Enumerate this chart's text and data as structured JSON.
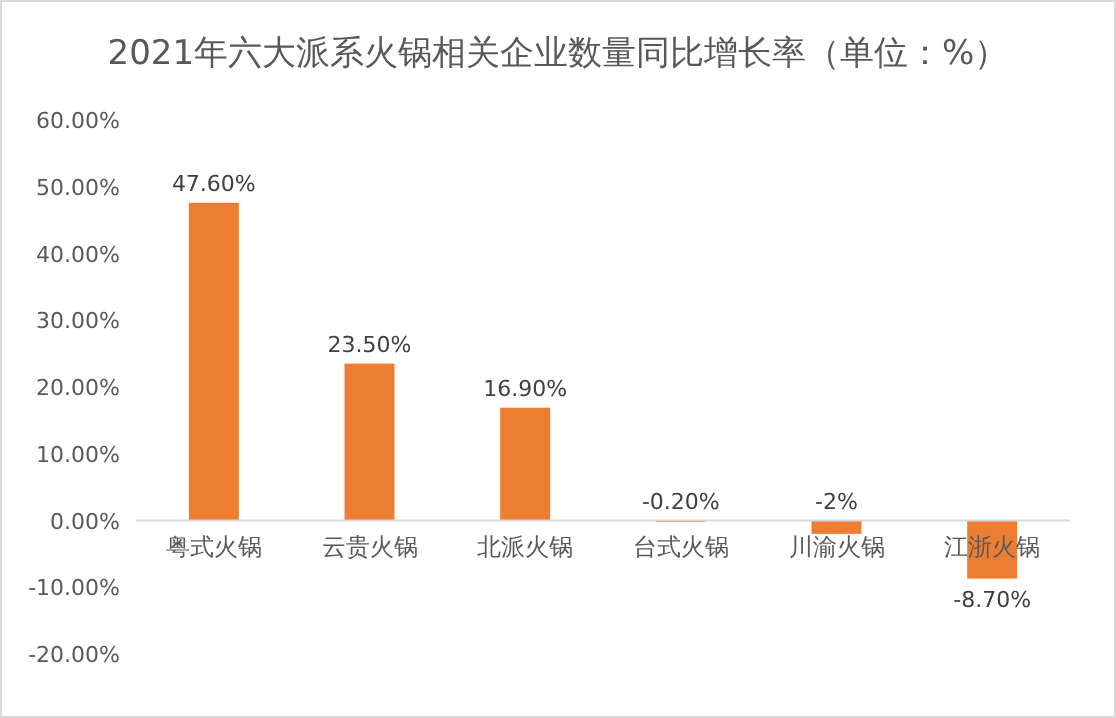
{
  "chart_data": {
    "type": "bar",
    "title": "2021年六大派系火锅相关企业数量同比增长率（单位：%）",
    "categories": [
      "粤式火锅",
      "云贵火锅",
      "北派火锅",
      "台式火锅",
      "川渝火锅",
      "江浙火锅"
    ],
    "values": [
      47.6,
      23.5,
      16.9,
      -0.2,
      -2,
      -8.7
    ],
    "value_labels": [
      "47.60%",
      "23.50%",
      "16.90%",
      "-0.20%",
      "-2%",
      "-8.70%"
    ],
    "color": "#ed7d31",
    "ylim": [
      -20,
      60
    ],
    "yticks": [
      {
        "value": -20,
        "label": "-20.00%"
      },
      {
        "value": -10,
        "label": "-10.00%"
      },
      {
        "value": 0,
        "label": "0.00%"
      },
      {
        "value": 10,
        "label": "10.00%"
      },
      {
        "value": 20,
        "label": "20.00%"
      },
      {
        "value": 30,
        "label": "30.00%"
      },
      {
        "value": 40,
        "label": "40.00%"
      },
      {
        "value": 50,
        "label": "50.00%"
      },
      {
        "value": 60,
        "label": "60.00%"
      }
    ]
  }
}
